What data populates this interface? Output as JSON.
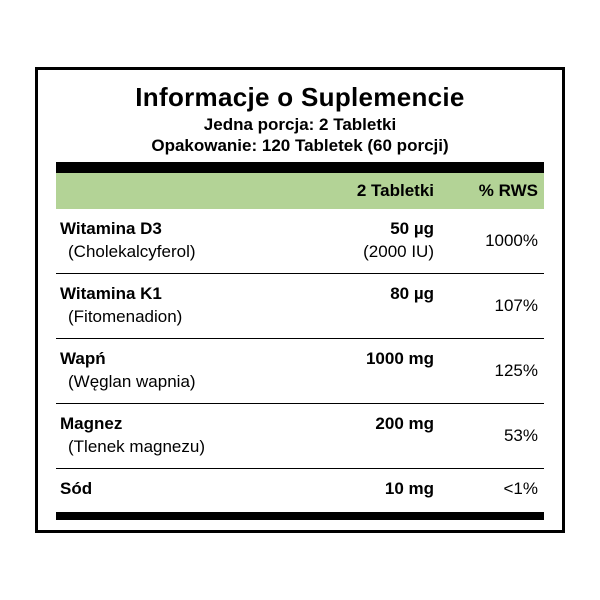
{
  "colors": {
    "border": "#000000",
    "header_bg": "#b3d396",
    "background": "#ffffff",
    "text": "#000000"
  },
  "panel": {
    "title": "Informacje o Suplemencie",
    "serving_line": "Jedna porcja: 2 Tabletki",
    "package_line": "Opakowanie: 120 Tabletek (60 porcji)"
  },
  "header": {
    "amount_label": "2 Tabletki",
    "rws_label": "% RWS"
  },
  "rows": [
    {
      "name": "Witamina D3",
      "subname": "(Cholekalcyferol)",
      "amount": "50 µg",
      "subamount": "(2000 IU)",
      "rws": "1000%"
    },
    {
      "name": "Witamina K1",
      "subname": "(Fitomenadion)",
      "amount": "80 µg",
      "subamount": "",
      "rws": "107%"
    },
    {
      "name": "Wapń",
      "subname": "(Węglan wapnia)",
      "amount": "1000 mg",
      "subamount": "",
      "rws": "125%"
    },
    {
      "name": "Magnez",
      "subname": "(Tlenek magnezu)",
      "amount": "200 mg",
      "subamount": "",
      "rws": "53%"
    },
    {
      "name": "Sód",
      "subname": "",
      "amount": "10 mg",
      "subamount": "",
      "rws": "<1%"
    }
  ]
}
